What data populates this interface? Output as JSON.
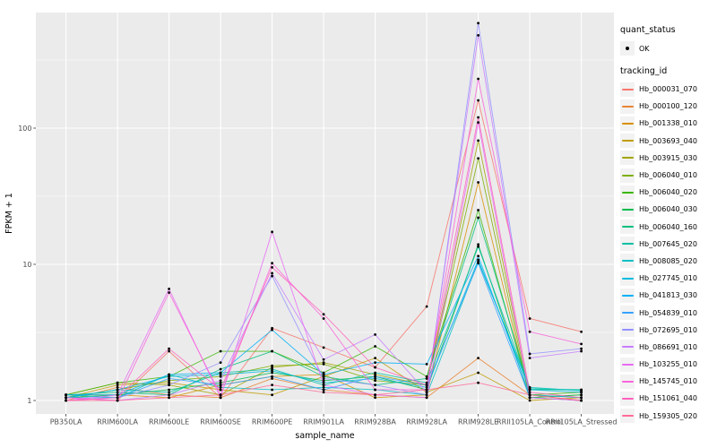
{
  "chart_data": {
    "type": "line",
    "title": "",
    "xlabel": "sample_name",
    "ylabel": "FPKM + 1",
    "yscale": "log10",
    "ytick_labels": [
      "1",
      "10",
      "100"
    ],
    "ytick_values": [
      1,
      10,
      100
    ],
    "yminor_values": [
      3.1623,
      31.623,
      316.23
    ],
    "ylim": [
      0.8,
      700
    ],
    "grid": true,
    "legend_position": "right",
    "panel_bg": "#EBEBEB",
    "grid_color": "#FFFFFF",
    "tick_label_color": "#4D4D4D",
    "point_color": "#000000",
    "categories": [
      "PB350LA",
      "RRIM600LA",
      "RRIM600LE",
      "RRIM600SE",
      "RRIM600PE",
      "RRIM901LA",
      "RRIM928BA",
      "RRIM928LA",
      "RRIM928LE",
      "RRII105LA_Control",
      "RRII105LA_Stressed"
    ],
    "quant_status": {
      "title": "quant_status",
      "items": [
        {
          "label": "OK",
          "symbol": "point"
        }
      ]
    },
    "tracking_id_title": "tracking_id",
    "series": [
      {
        "name": "Hb_000031_070",
        "color": "#F8766D",
        "values": [
          1.05,
          1.0,
          2.3,
          1.05,
          3.4,
          2.45,
          1.75,
          4.9,
          160,
          4.0,
          3.2
        ]
      },
      {
        "name": "Hb_000100_120",
        "color": "#EA8331",
        "values": [
          1.0,
          1.25,
          1.1,
          1.05,
          1.45,
          1.2,
          1.1,
          1.05,
          2.05,
          1.1,
          1.0
        ]
      },
      {
        "name": "Hb_001338_010",
        "color": "#D89000",
        "values": [
          1.1,
          1.1,
          1.05,
          1.3,
          1.5,
          1.55,
          1.05,
          1.1,
          40,
          1.05,
          1.0
        ]
      },
      {
        "name": "Hb_003693_040",
        "color": "#C09B00",
        "values": [
          1.05,
          1.3,
          1.35,
          1.2,
          1.1,
          1.5,
          2.05,
          1.15,
          1.6,
          1.0,
          1.05
        ]
      },
      {
        "name": "Hb_003915_030",
        "color": "#A3A500",
        "values": [
          1.1,
          1.35,
          1.3,
          1.1,
          1.75,
          1.9,
          1.55,
          1.3,
          81,
          1.1,
          1.05
        ]
      },
      {
        "name": "Hb_006040_010",
        "color": "#7CAE00",
        "values": [
          1.05,
          1.2,
          1.4,
          1.5,
          1.8,
          1.85,
          1.4,
          1.3,
          60,
          1.05,
          1.1
        ]
      },
      {
        "name": "Hb_006040_020",
        "color": "#39B600",
        "values": [
          1.1,
          1.35,
          1.5,
          2.3,
          2.3,
          1.6,
          2.5,
          1.5,
          25,
          1.1,
          1.15
        ]
      },
      {
        "name": "Hb_006040_030",
        "color": "#00BB4E",
        "values": [
          1.05,
          1.1,
          1.2,
          1.35,
          1.6,
          1.4,
          1.5,
          1.2,
          14,
          1.05,
          1.1
        ]
      },
      {
        "name": "Hb_006040_160",
        "color": "#00BF7D",
        "values": [
          1.1,
          1.15,
          1.1,
          1.7,
          2.3,
          1.5,
          1.3,
          1.45,
          22,
          1.2,
          1.2
        ]
      },
      {
        "name": "Hb_007645_020",
        "color": "#00C1A3",
        "values": [
          1.05,
          1.2,
          1.15,
          1.6,
          1.7,
          1.3,
          1.6,
          1.35,
          13.5,
          1.22,
          1.2
        ]
      },
      {
        "name": "Hb_008085_020",
        "color": "#00BFC4",
        "values": [
          1.1,
          1.05,
          1.55,
          1.25,
          1.2,
          1.25,
          1.2,
          1.1,
          10.5,
          1.25,
          1.18
        ]
      },
      {
        "name": "Hb_027745_010",
        "color": "#00BAE0",
        "values": [
          1.05,
          1.2,
          1.5,
          1.55,
          1.65,
          1.35,
          1.45,
          1.25,
          10.8,
          1.2,
          1.15
        ]
      },
      {
        "name": "Hb_041813_030",
        "color": "#00B0F6",
        "values": [
          1.1,
          1.1,
          1.55,
          1.6,
          3.3,
          1.55,
          1.9,
          1.85,
          11.5,
          1.1,
          1.05
        ]
      },
      {
        "name": "Hb_054839_010",
        "color": "#35A2FF",
        "values": [
          1.05,
          1.05,
          1.45,
          1.3,
          1.5,
          1.2,
          1.5,
          1.3,
          10.2,
          1.05,
          1.0
        ]
      },
      {
        "name": "Hb_072695_010",
        "color": "#9590FF",
        "values": [
          1.0,
          1.05,
          1.3,
          1.9,
          8.2,
          1.45,
          1.3,
          1.1,
          590,
          2.2,
          2.4
        ]
      },
      {
        "name": "Hb_086691_010",
        "color": "#C77CFF",
        "values": [
          1.05,
          1.0,
          1.1,
          1.4,
          8.6,
          2.0,
          3.05,
          1.15,
          480,
          2.05,
          2.3
        ]
      },
      {
        "name": "Hb_103255_010",
        "color": "#E76BF3",
        "values": [
          1.0,
          1.1,
          6.6,
          1.05,
          17.3,
          1.3,
          1.1,
          1.05,
          110,
          1.05,
          1.0
        ]
      },
      {
        "name": "Hb_145745_010",
        "color": "#FA62DB",
        "values": [
          1.05,
          1.0,
          6.2,
          1.1,
          10.2,
          4.0,
          1.2,
          1.2,
          230,
          3.2,
          2.6
        ]
      },
      {
        "name": "Hb_151061_040",
        "color": "#FF62BC",
        "values": [
          1.0,
          1.05,
          2.4,
          1.2,
          9.5,
          4.3,
          1.75,
          1.3,
          120,
          1.15,
          1.05
        ]
      },
      {
        "name": "Hb_159305_020",
        "color": "#FF6A98",
        "values": [
          1.0,
          1.0,
          1.05,
          1.1,
          1.3,
          1.15,
          1.1,
          1.2,
          1.35,
          1.1,
          1.0
        ]
      }
    ]
  }
}
